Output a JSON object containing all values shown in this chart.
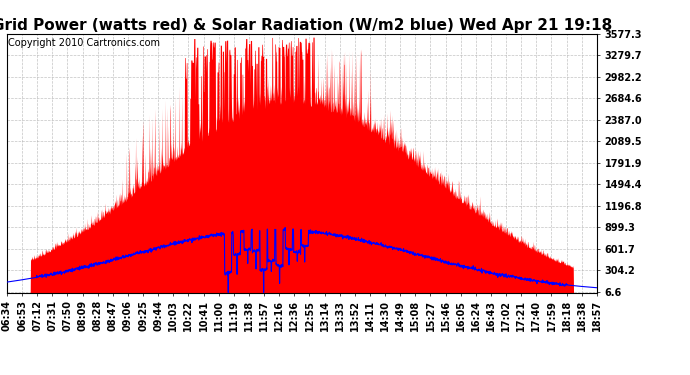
{
  "title": "Grid Power (watts red) & Solar Radiation (W/m2 blue) Wed Apr 21 19:18",
  "copyright": "Copyright 2010 Cartronics.com",
  "background_color": "#ffffff",
  "plot_bg_color": "#ffffff",
  "grid_color": "#aaaaaa",
  "yticks": [
    6.6,
    304.2,
    601.7,
    899.3,
    1196.8,
    1494.4,
    1791.9,
    2089.5,
    2387.0,
    2684.6,
    2982.2,
    3279.7,
    3577.3
  ],
  "ymax": 3577.3,
  "ymin": 0,
  "xtick_labels": [
    "06:34",
    "06:53",
    "07:12",
    "07:31",
    "07:50",
    "08:09",
    "08:28",
    "08:47",
    "09:06",
    "09:25",
    "09:44",
    "10:03",
    "10:22",
    "10:41",
    "11:00",
    "11:19",
    "11:38",
    "11:57",
    "12:16",
    "12:36",
    "12:55",
    "13:14",
    "13:33",
    "13:52",
    "14:11",
    "14:30",
    "14:49",
    "15:08",
    "15:27",
    "15:46",
    "16:05",
    "16:24",
    "16:43",
    "17:02",
    "17:21",
    "17:40",
    "17:59",
    "18:18",
    "18:38",
    "18:57"
  ],
  "red_fill_color": "#ff0000",
  "blue_line_color": "#0000ff",
  "title_fontsize": 11,
  "tick_fontsize": 7,
  "copyright_fontsize": 7
}
